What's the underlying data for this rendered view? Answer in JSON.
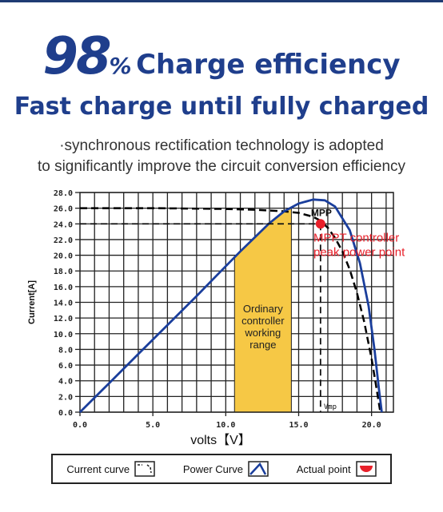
{
  "header": {
    "big_number": "98",
    "percent": "%",
    "title_rest": "Charge efficiency",
    "line2": "Fast charge until fully charged"
  },
  "subtitle": {
    "line1": "·synchronous rectification technology is adopted",
    "line2": "to significantly improve the circuit conversion efficiency"
  },
  "chart_data": {
    "type": "line",
    "xlabel": "volts【V】",
    "ylabel": "Current[A]",
    "xlim": [
      0,
      21.5
    ],
    "ylim": [
      0,
      28
    ],
    "x_ticks": [
      "0.0",
      "5.0",
      "10.0",
      "15.0",
      "20.0"
    ],
    "y_ticks": [
      "0.0",
      "2.0",
      "4.0",
      "6.0",
      "8.0",
      "10.0",
      "12.0",
      "14.0",
      "16.0",
      "18.0",
      "20.0",
      "22.0",
      "24.0",
      "26.0",
      "28.0"
    ],
    "grid": true,
    "series": [
      {
        "name": "Current curve",
        "style": "dashed",
        "color": "#000000",
        "x": [
          0,
          5,
          10,
          12,
          14,
          15,
          16,
          16.5,
          17,
          17.5,
          18,
          18.5,
          19,
          19.5,
          20,
          20.3,
          20.6
        ],
        "y": [
          26,
          26,
          25.9,
          25.8,
          25.6,
          25.4,
          24.9,
          24.4,
          23.5,
          22.2,
          20.5,
          18.2,
          15.2,
          11.5,
          6.8,
          3.5,
          0
        ]
      },
      {
        "name": "Power Curve",
        "style": "solid",
        "color": "#1a3e9c",
        "x": [
          0,
          2,
          4,
          6,
          8,
          10,
          11,
          12,
          13,
          14,
          15,
          16,
          16.8,
          17.5,
          18.5,
          19.2,
          19.8,
          20.2,
          20.5,
          20.7
        ],
        "y": [
          0,
          3.7,
          7.4,
          11.1,
          14.8,
          18.6,
          20.5,
          22.3,
          24.1,
          25.6,
          26.6,
          27.1,
          27.0,
          26.2,
          23.2,
          19.0,
          13.5,
          8.0,
          3.0,
          0
        ]
      }
    ],
    "highlight_region": {
      "x_start": 10.6,
      "x_end": 14.5,
      "color": "#f6c845",
      "label": [
        "Ordinary",
        "controller",
        "working",
        "range"
      ]
    },
    "mpp_point": {
      "x": 16.5,
      "y": 24.0,
      "label": "MPP",
      "annotation": [
        "MPPT controller",
        "peak power point"
      ],
      "vmp_label": "Vmp"
    },
    "reference_line_y": 24.0
  },
  "legend": {
    "items": [
      {
        "label": "Current curve",
        "icon": "current-curve-icon"
      },
      {
        "label": "Power Curve",
        "icon": "power-curve-icon"
      },
      {
        "label": "Actual point",
        "icon": "actual-point-icon"
      }
    ]
  },
  "colors": {
    "brand_blue": "#1f3e8c",
    "power_curve": "#1a3e9c",
    "highlight": "#f6c845",
    "mppt_red": "#e8202a"
  }
}
